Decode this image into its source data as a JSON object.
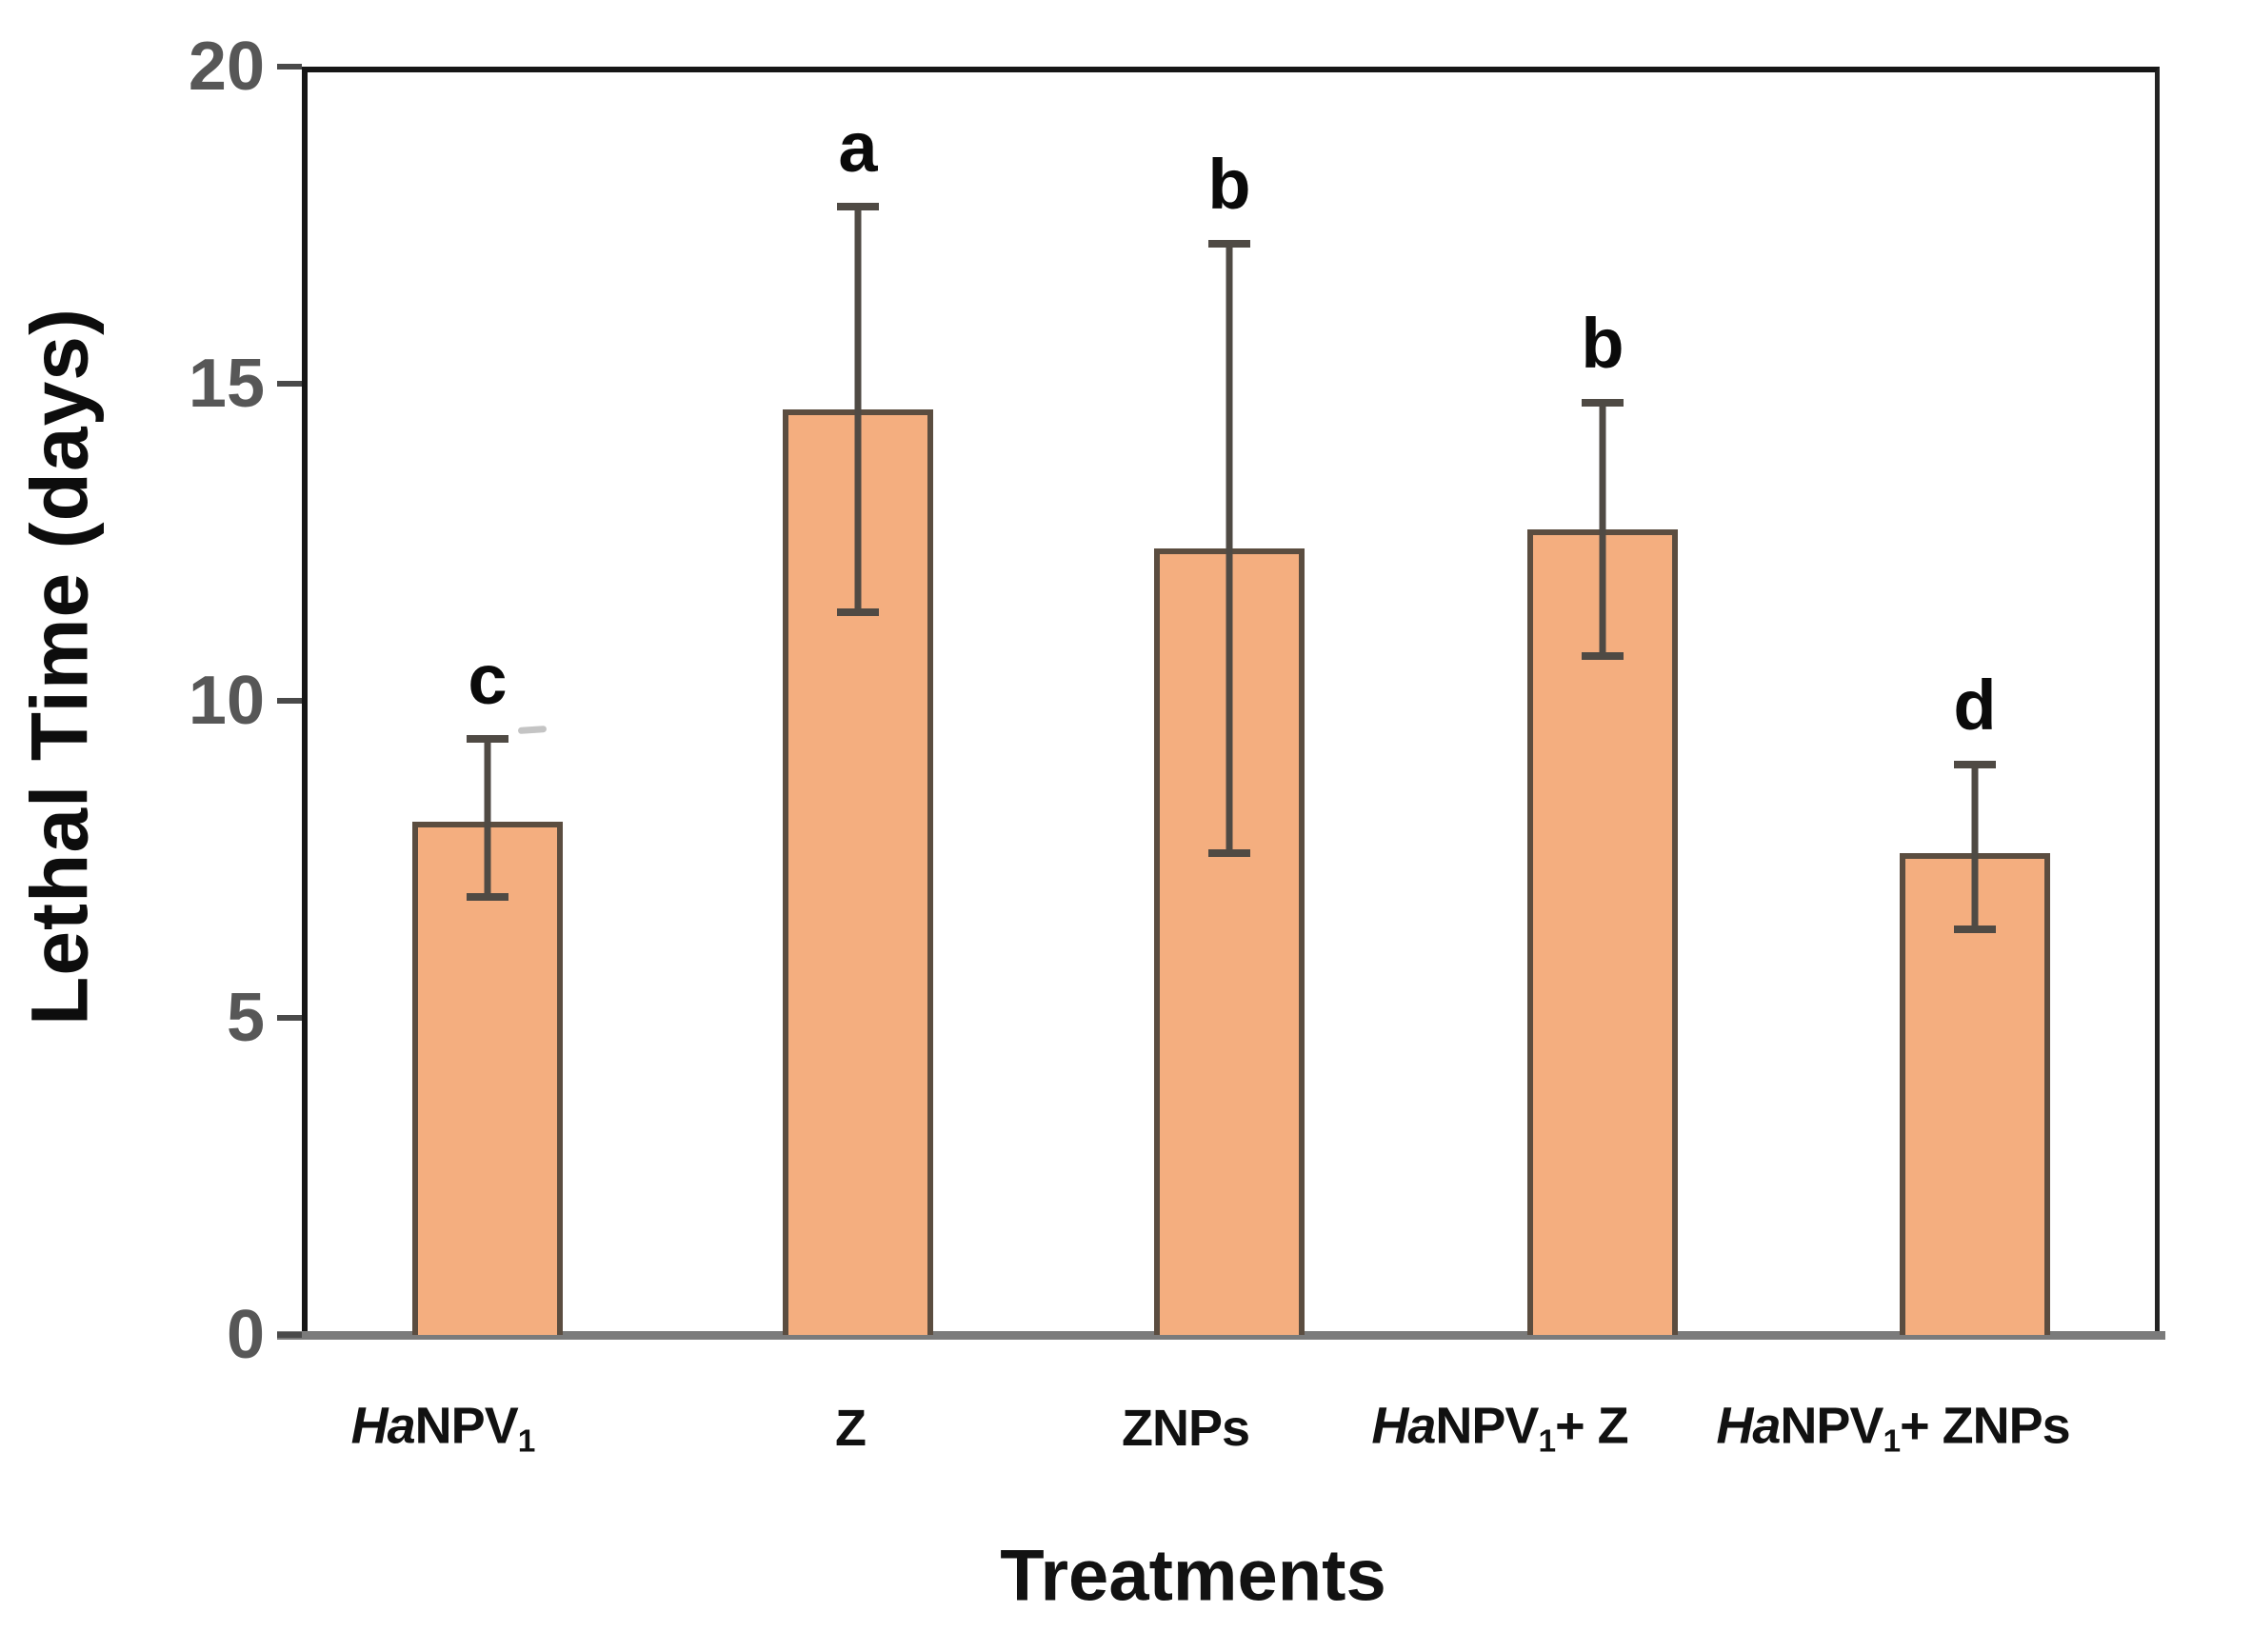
{
  "figure": {
    "y_axis_title": "Lethal Time (days)",
    "x_axis_title": "Treatments"
  },
  "chart_data": {
    "type": "bar",
    "title": "",
    "xlabel": "Treatments",
    "ylabel": "Lethal Time (days)",
    "ylim": [
      0,
      20
    ],
    "yticks": [
      0,
      5,
      10,
      15,
      20
    ],
    "grid": false,
    "legend": null,
    "categories": [
      "HaNPV₁",
      "Z",
      "ZNPs",
      "HaNPV₁+ Z",
      "HaNPV₁+ ZNPs"
    ],
    "categories_rich": [
      [
        [
          "i",
          "Ha"
        ],
        [
          "t",
          "NPV"
        ],
        [
          "s",
          "1"
        ]
      ],
      [
        [
          "t",
          "Z"
        ]
      ],
      [
        [
          "t",
          "ZNPs"
        ]
      ],
      [
        [
          "i",
          "Ha"
        ],
        [
          "t",
          "NPV"
        ],
        [
          "s",
          "1"
        ],
        [
          "t",
          "+ Z"
        ]
      ],
      [
        [
          "i",
          "Ha"
        ],
        [
          "t",
          "NPV"
        ],
        [
          "s",
          "1"
        ],
        [
          "t",
          "+ ZNPs"
        ]
      ]
    ],
    "values": [
      8.1,
      14.6,
      12.4,
      12.7,
      7.6
    ],
    "error_bars": {
      "upper": [
        9.4,
        17.8,
        17.2,
        14.7,
        9.0
      ],
      "lower": [
        6.9,
        11.4,
        7.6,
        10.7,
        6.4
      ]
    },
    "significance_letters": [
      "c",
      "a",
      "b",
      "b",
      "d"
    ],
    "colors": {
      "bar_fill": "#f4ae7f",
      "bar_border": "#5b4d40",
      "error_bar": "#4f4a44",
      "axis_line": "#161616",
      "baseline": "#7b7b7b",
      "tick_label": "#575757",
      "text": "#111111"
    }
  }
}
